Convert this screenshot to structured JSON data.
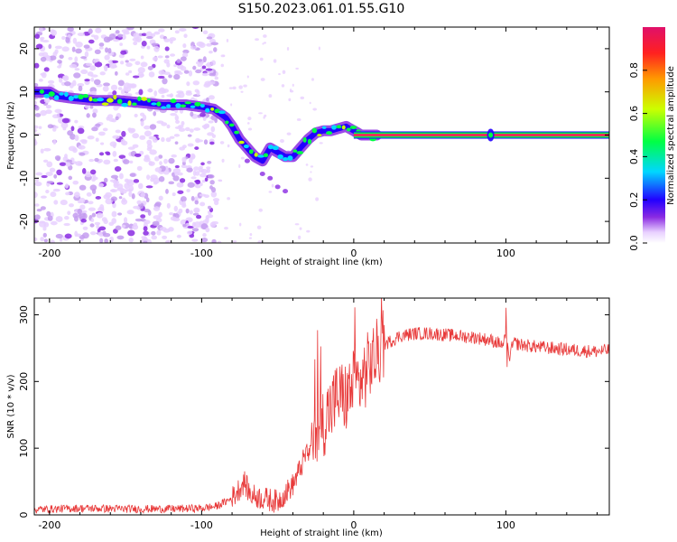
{
  "title": "S150.2023.061.01.55.G10",
  "colors": {
    "snr_line": "#e83a3a",
    "track": "#e8305a",
    "colormap": [
      "#ffffff",
      "#e8d0ff",
      "#8a2be2",
      "#2200ff",
      "#00d7ff",
      "#00ff44",
      "#ccff00",
      "#ff9a00",
      "#ff2020",
      "#e0106a"
    ]
  },
  "chart_data": [
    {
      "type": "heatmap",
      "panel": "spectrogram",
      "xlabel": "Height of straight line (km)",
      "ylabel": "Frequency (Hz)",
      "xlim": [
        -210,
        168
      ],
      "ylim": [
        -25,
        25
      ],
      "xticks": [
        -200,
        -100,
        0,
        100
      ],
      "yticks": [
        -20,
        -10,
        0,
        10,
        20
      ],
      "dominant_frequency_track": {
        "x": [
          -210,
          -200,
          -195,
          -185,
          -170,
          -155,
          -140,
          -125,
          -110,
          -100,
          -92,
          -88,
          -84,
          -80,
          -75,
          -70,
          -65,
          -60,
          -55,
          -50,
          -45,
          -40,
          -35,
          -30,
          -25,
          -20,
          -15,
          -10,
          -5,
          0,
          5,
          10,
          15,
          20,
          50,
          85,
          90,
          95,
          100,
          168
        ],
        "y": [
          10,
          10,
          9,
          8.5,
          8,
          8,
          7.5,
          7,
          7,
          6.5,
          6,
          5,
          4,
          2,
          -1,
          -3,
          -5,
          -6,
          -3,
          -4,
          -5,
          -5,
          -3,
          -1,
          0.5,
          1,
          1,
          1.5,
          2,
          1,
          0,
          0,
          0,
          0,
          0,
          0,
          -0.5,
          0,
          0,
          0
        ]
      },
      "colorbar": {
        "label": "Normalized spectral amplitude",
        "range": [
          0,
          1
        ],
        "ticks": [
          "0.0",
          "0.2",
          "0.4",
          "0.6",
          "0.8"
        ]
      }
    },
    {
      "type": "line",
      "panel": "snr",
      "xlabel": "Height of straight line (km)",
      "ylabel": "SNR (10 * v/v)",
      "xlim": [
        -210,
        168
      ],
      "ylim": [
        0,
        325
      ],
      "xticks": [
        -200,
        -100,
        0,
        100
      ],
      "yticks": [
        0,
        100,
        200,
        300
      ],
      "series": [
        {
          "x": [
            -210,
            -180,
            -150,
            -120,
            -100,
            -90,
            -80,
            -75,
            -72,
            -68,
            -60,
            -50,
            -40,
            -35,
            -30,
            -25,
            -20,
            -15,
            -10,
            -5,
            0,
            5,
            10,
            15,
            20,
            30,
            40,
            50,
            60,
            70,
            80,
            90,
            95,
            98,
            100,
            102,
            105,
            110,
            120,
            130,
            140,
            150,
            160,
            168
          ],
          "values": [
            8,
            10,
            9,
            9,
            10,
            13,
            25,
            40,
            50,
            30,
            25,
            20,
            45,
            70,
            100,
            120,
            140,
            160,
            180,
            175,
            195,
            200,
            225,
            240,
            255,
            268,
            272,
            272,
            270,
            268,
            266,
            262,
            258,
            255,
            270,
            235,
            258,
            255,
            252,
            250,
            248,
            246,
            245,
            247
          ]
        }
      ]
    }
  ]
}
